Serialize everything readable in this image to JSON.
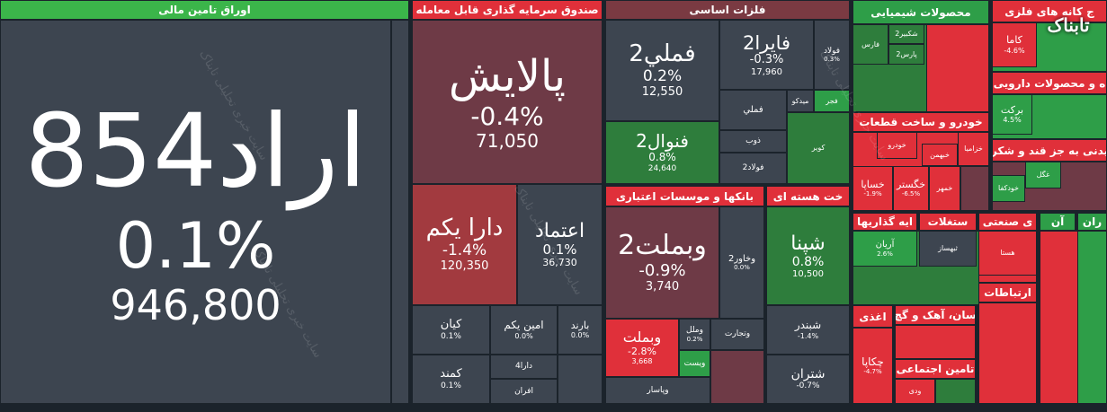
{
  "logo": "تابناک",
  "watermark": "سایت خبری تحلیلی تابناک",
  "sectors": [
    {
      "title": "اوراق تامین مالی",
      "tiles": [
        {
          "name": "اراد854",
          "change": "0.1%",
          "price": "946,800"
        }
      ]
    },
    {
      "title": "صندوق سرمایه گذاری قابل معامله",
      "tiles": [
        {
          "name": "پالایش",
          "change": "-0.4%",
          "price": "71,050"
        },
        {
          "name": "دارا یکم",
          "change": "-1.4%",
          "price": "120,350"
        },
        {
          "name": "اعتماد",
          "change": "0.1%",
          "price": "36,730"
        },
        {
          "name": "کیان",
          "change": "0.1%"
        },
        {
          "name": "امین یکم",
          "change": "0.0%"
        },
        {
          "name": "بارند",
          "change": "0.0%"
        },
        {
          "name": "کمند",
          "change": "0.1%"
        },
        {
          "name": "دارا4"
        },
        {
          "name": "افران"
        }
      ]
    },
    {
      "title": "فلزات اساسی",
      "tiles": [
        {
          "name": "فملي2",
          "change": "0.2%",
          "price": "12,550"
        },
        {
          "name": "فايرا2",
          "change": "-0.3%",
          "price": "17,960"
        },
        {
          "name": "فولاد",
          "change": "0.3%"
        },
        {
          "name": "فنوال2",
          "change": "0.8%",
          "price": "24,640"
        },
        {
          "name": "فملي"
        },
        {
          "name": "میدکو"
        },
        {
          "name": "فجر"
        },
        {
          "name": "ذوب"
        },
        {
          "name": "فولاد2"
        },
        {
          "name": "کویر"
        }
      ]
    },
    {
      "title": "بانکها و موسسات اعتباری",
      "tiles": [
        {
          "name": "وبملت2",
          "change": "-0.9%",
          "price": "3,740"
        },
        {
          "name": "وخاور2",
          "change": "0.0%"
        },
        {
          "name": "وبملت",
          "change": "-2.8%",
          "price": "3,668"
        },
        {
          "name": "وملل",
          "change": "0.2%"
        },
        {
          "name": "وتجارت"
        },
        {
          "name": "ویست"
        },
        {
          "name": "وپاسار"
        }
      ]
    },
    {
      "title": "خت هسته ای",
      "tiles": [
        {
          "name": "شپنا",
          "change": "0.8%",
          "price": "10,500"
        },
        {
          "name": "شبندر",
          "change": "-1.4%"
        },
        {
          "name": "شتران",
          "change": "-0.7%"
        }
      ]
    },
    {
      "title": "محصولات شیمیایی",
      "tiles": [
        {
          "name": "فارس"
        },
        {
          "name": "شکبیر2"
        },
        {
          "name": "پارس2"
        }
      ]
    },
    {
      "title": "ج کانه های فلزی",
      "tiles": [
        {
          "name": "کاما",
          "change": "-4.6%"
        }
      ]
    },
    {
      "title": "ه و محصولات دارویی",
      "tiles": [
        {
          "name": "برکت",
          "change": "4.5%"
        }
      ]
    },
    {
      "title": "خودرو و ساخت قطعات",
      "tiles": [
        {
          "name": "خودرو"
        },
        {
          "name": "خزامیا"
        },
        {
          "name": "خبهمن"
        },
        {
          "name": "خساپا",
          "change": "-1.9%"
        },
        {
          "name": "خگستر",
          "change": "-6.5%"
        },
        {
          "name": "خمهر"
        }
      ]
    },
    {
      "title": "یدنی به جز قند و شکر",
      "tiles": [
        {
          "name": "غگل"
        },
        {
          "name": "خودکفا"
        }
      ]
    },
    {
      "title": "ایه گذاریها",
      "tiles": [
        {
          "name": "آریان",
          "change": "2.6%"
        }
      ]
    },
    {
      "title": "ستغلات",
      "tiles": [
        {
          "name": "ثبهساز"
        }
      ]
    },
    {
      "title": "ی صنعتی",
      "tiles": [
        {
          "name": "هستا"
        }
      ]
    },
    {
      "title": "آن",
      "tiles": []
    },
    {
      "title": "ران",
      "tiles": []
    },
    {
      "title": "اغذی",
      "tiles": [
        {
          "name": "چکاپا",
          "change": "-4.7%"
        }
      ]
    },
    {
      "title": "سان، آهک و گچ",
      "tiles": []
    },
    {
      "title": "تامین اجتماعی",
      "tiles": [
        {
          "name": "ودی"
        }
      ]
    },
    {
      "title": "ارتباطات",
      "tiles": []
    }
  ]
}
